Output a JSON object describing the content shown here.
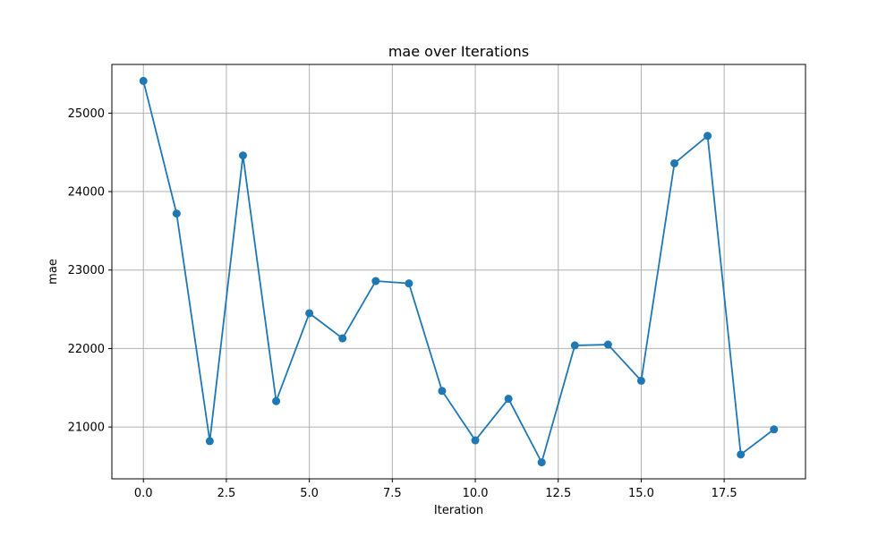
{
  "chart_data": {
    "type": "line",
    "title": "mae over Iterations",
    "xlabel": "Iteration",
    "ylabel": "mae",
    "xlim": [
      -0.95,
      19.95
    ],
    "ylim": [
      20340,
      25620
    ],
    "xticks": [
      0.0,
      2.5,
      5.0,
      7.5,
      10.0,
      12.5,
      15.0,
      17.5
    ],
    "xtick_labels": [
      "0.0",
      "2.5",
      "5.0",
      "7.5",
      "10.0",
      "12.5",
      "15.0",
      "17.5"
    ],
    "yticks": [
      21000,
      22000,
      23000,
      24000,
      25000
    ],
    "ytick_labels": [
      "21000",
      "22000",
      "23000",
      "24000",
      "25000"
    ],
    "grid": true,
    "marker": "circle",
    "color": "#1f77b4",
    "series": [
      {
        "x": [
          0,
          1,
          2,
          3,
          4,
          5,
          6,
          7,
          8,
          9,
          10,
          11,
          12,
          13,
          14,
          15,
          16,
          17,
          18,
          19
        ],
        "values": [
          25410,
          23720,
          20820,
          24460,
          21330,
          22450,
          22130,
          22860,
          22830,
          21460,
          20830,
          21360,
          20550,
          22040,
          22050,
          21590,
          24360,
          24710,
          20650,
          20970
        ]
      }
    ]
  }
}
